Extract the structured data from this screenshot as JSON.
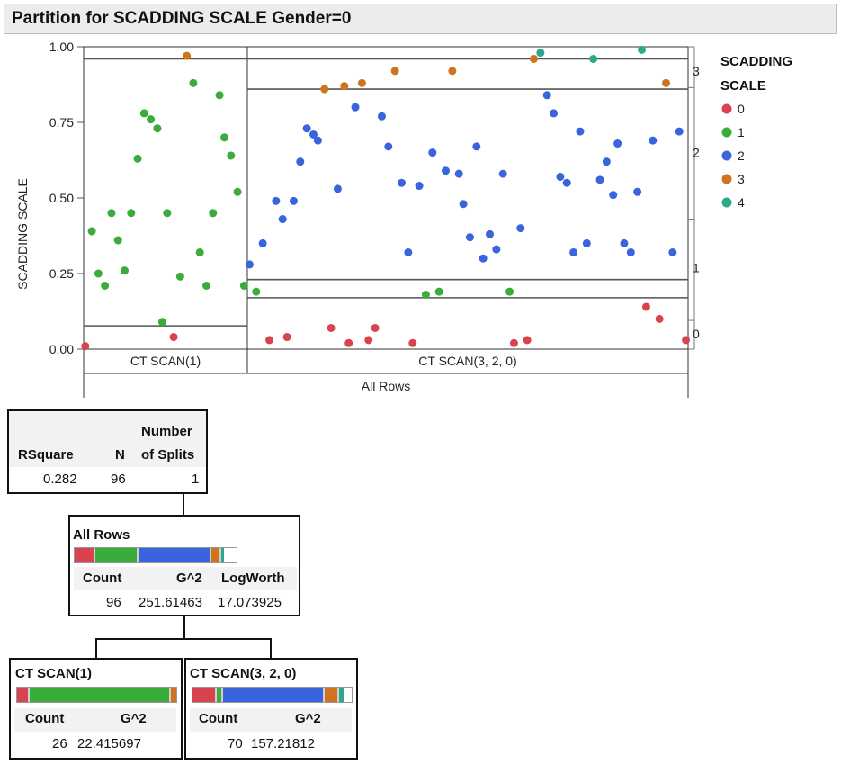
{
  "title": "Partition for SCADDING SCALE Gender=0",
  "colors": {
    "0": "#d9434f",
    "1": "#3aac3a",
    "2": "#3a64dc",
    "3": "#d0731e",
    "4": "#2aaa8a"
  },
  "chart_data": {
    "type": "scatter",
    "ylabel": "SCADDING SCALE",
    "y_ticks": [
      "0.00",
      "0.25",
      "0.50",
      "0.75",
      "1.00"
    ],
    "ylim": [
      0,
      1
    ],
    "x_groups": [
      "CT SCAN(1)",
      "CT SCAN(3, 2, 0)"
    ],
    "x_bottom_label": "All Rows",
    "right_axis_labels": [
      "0",
      "1",
      "2",
      "3"
    ],
    "legend": {
      "title_line1": "SCADDING",
      "title_line2": "SCALE",
      "items": [
        "0",
        "1",
        "2",
        "3",
        "4"
      ]
    },
    "split_lines": {
      "group1": [
        0.077,
        0.96
      ],
      "group2": [
        0.17,
        0.23,
        0.86,
        0.96
      ]
    },
    "points": {
      "group1": [
        [
          0.01,
          0.01,
          "0"
        ],
        [
          0.05,
          0.39,
          "1"
        ],
        [
          0.09,
          0.25,
          "1"
        ],
        [
          0.13,
          0.21,
          "1"
        ],
        [
          0.17,
          0.45,
          "1"
        ],
        [
          0.21,
          0.36,
          "1"
        ],
        [
          0.25,
          0.26,
          "1"
        ],
        [
          0.29,
          0.45,
          "1"
        ],
        [
          0.33,
          0.63,
          "1"
        ],
        [
          0.37,
          0.78,
          "1"
        ],
        [
          0.41,
          0.76,
          "1"
        ],
        [
          0.45,
          0.73,
          "1"
        ],
        [
          0.48,
          0.09,
          "1"
        ],
        [
          0.51,
          0.45,
          "1"
        ],
        [
          0.55,
          0.04,
          "0"
        ],
        [
          0.59,
          0.24,
          "1"
        ],
        [
          0.63,
          0.97,
          "3"
        ],
        [
          0.67,
          0.88,
          "1"
        ],
        [
          0.71,
          0.32,
          "1"
        ],
        [
          0.75,
          0.21,
          "1"
        ],
        [
          0.79,
          0.45,
          "1"
        ],
        [
          0.83,
          0.84,
          "1"
        ],
        [
          0.86,
          0.7,
          "1"
        ],
        [
          0.9,
          0.64,
          "1"
        ],
        [
          0.94,
          0.52,
          "1"
        ],
        [
          0.98,
          0.21,
          "1"
        ]
      ],
      "group2": [
        [
          0.005,
          0.28,
          "2"
        ],
        [
          0.02,
          0.19,
          "1"
        ],
        [
          0.035,
          0.35,
          "2"
        ],
        [
          0.05,
          0.03,
          "0"
        ],
        [
          0.065,
          0.49,
          "2"
        ],
        [
          0.08,
          0.43,
          "2"
        ],
        [
          0.09,
          0.04,
          "0"
        ],
        [
          0.105,
          0.49,
          "2"
        ],
        [
          0.12,
          0.62,
          "2"
        ],
        [
          0.135,
          0.73,
          "2"
        ],
        [
          0.15,
          0.71,
          "2"
        ],
        [
          0.16,
          0.69,
          "2"
        ],
        [
          0.175,
          0.86,
          "3"
        ],
        [
          0.19,
          0.07,
          "0"
        ],
        [
          0.205,
          0.53,
          "2"
        ],
        [
          0.22,
          0.87,
          "3"
        ],
        [
          0.23,
          0.02,
          "0"
        ],
        [
          0.245,
          0.8,
          "2"
        ],
        [
          0.26,
          0.88,
          "3"
        ],
        [
          0.275,
          0.03,
          "0"
        ],
        [
          0.29,
          0.07,
          "0"
        ],
        [
          0.305,
          0.77,
          "2"
        ],
        [
          0.32,
          0.67,
          "2"
        ],
        [
          0.335,
          0.92,
          "3"
        ],
        [
          0.35,
          0.55,
          "2"
        ],
        [
          0.365,
          0.32,
          "2"
        ],
        [
          0.375,
          0.02,
          "0"
        ],
        [
          0.39,
          0.54,
          "2"
        ],
        [
          0.405,
          0.18,
          "1"
        ],
        [
          0.42,
          0.65,
          "2"
        ],
        [
          0.435,
          0.19,
          "1"
        ],
        [
          0.45,
          0.59,
          "2"
        ],
        [
          0.465,
          0.92,
          "3"
        ],
        [
          0.48,
          0.58,
          "2"
        ],
        [
          0.49,
          0.48,
          "2"
        ],
        [
          0.505,
          0.37,
          "2"
        ],
        [
          0.52,
          0.67,
          "2"
        ],
        [
          0.535,
          0.3,
          "2"
        ],
        [
          0.55,
          0.38,
          "2"
        ],
        [
          0.565,
          0.33,
          "2"
        ],
        [
          0.58,
          0.58,
          "2"
        ],
        [
          0.595,
          0.19,
          "1"
        ],
        [
          0.605,
          0.02,
          "0"
        ],
        [
          0.62,
          0.4,
          "2"
        ],
        [
          0.635,
          0.03,
          "0"
        ],
        [
          0.65,
          0.96,
          "3"
        ],
        [
          0.665,
          0.98,
          "4"
        ],
        [
          0.68,
          0.84,
          "2"
        ],
        [
          0.695,
          0.78,
          "2"
        ],
        [
          0.71,
          0.57,
          "2"
        ],
        [
          0.725,
          0.55,
          "2"
        ],
        [
          0.74,
          0.32,
          "2"
        ],
        [
          0.755,
          0.72,
          "2"
        ],
        [
          0.77,
          0.35,
          "2"
        ],
        [
          0.785,
          0.96,
          "4"
        ],
        [
          0.8,
          0.56,
          "2"
        ],
        [
          0.815,
          0.62,
          "2"
        ],
        [
          0.83,
          0.51,
          "2"
        ],
        [
          0.84,
          0.68,
          "2"
        ],
        [
          0.855,
          0.35,
          "2"
        ],
        [
          0.87,
          0.32,
          "2"
        ],
        [
          0.885,
          0.52,
          "2"
        ],
        [
          0.895,
          0.99,
          "4"
        ],
        [
          0.905,
          0.14,
          "0"
        ],
        [
          0.92,
          0.69,
          "2"
        ],
        [
          0.935,
          0.1,
          "0"
        ],
        [
          0.95,
          0.88,
          "3"
        ],
        [
          0.965,
          0.32,
          "2"
        ],
        [
          0.98,
          0.72,
          "2"
        ],
        [
          0.995,
          0.03,
          "0"
        ]
      ]
    }
  },
  "summary": {
    "h_rsquare": "RSquare",
    "h_n": "N",
    "h_splits_1": "Number",
    "h_splits_2": "of Splits",
    "rsquare": "0.282",
    "n": "96",
    "splits": "1"
  },
  "nodes": {
    "root": {
      "title": "All Rows",
      "h_count": "Count",
      "h_g2": "G^2",
      "h_logworth": "LogWorth",
      "count": "96",
      "g2": "251.61463",
      "logworth": "17.073925",
      "proportions": [
        0.125,
        0.27,
        0.45,
        0.06,
        0.02
      ]
    },
    "left": {
      "title": "CT SCAN(1)",
      "h_count": "Count",
      "h_g2": "G^2",
      "count": "26",
      "g2": "22.415697",
      "proportions": [
        0.08,
        0.885,
        0,
        0.035,
        0
      ]
    },
    "right": {
      "title": "CT SCAN(3, 2, 0)",
      "h_count": "Count",
      "h_g2": "G^2",
      "count": "70",
      "g2": "157.21812",
      "proportions": [
        0.15,
        0.04,
        0.64,
        0.09,
        0.03
      ]
    }
  }
}
